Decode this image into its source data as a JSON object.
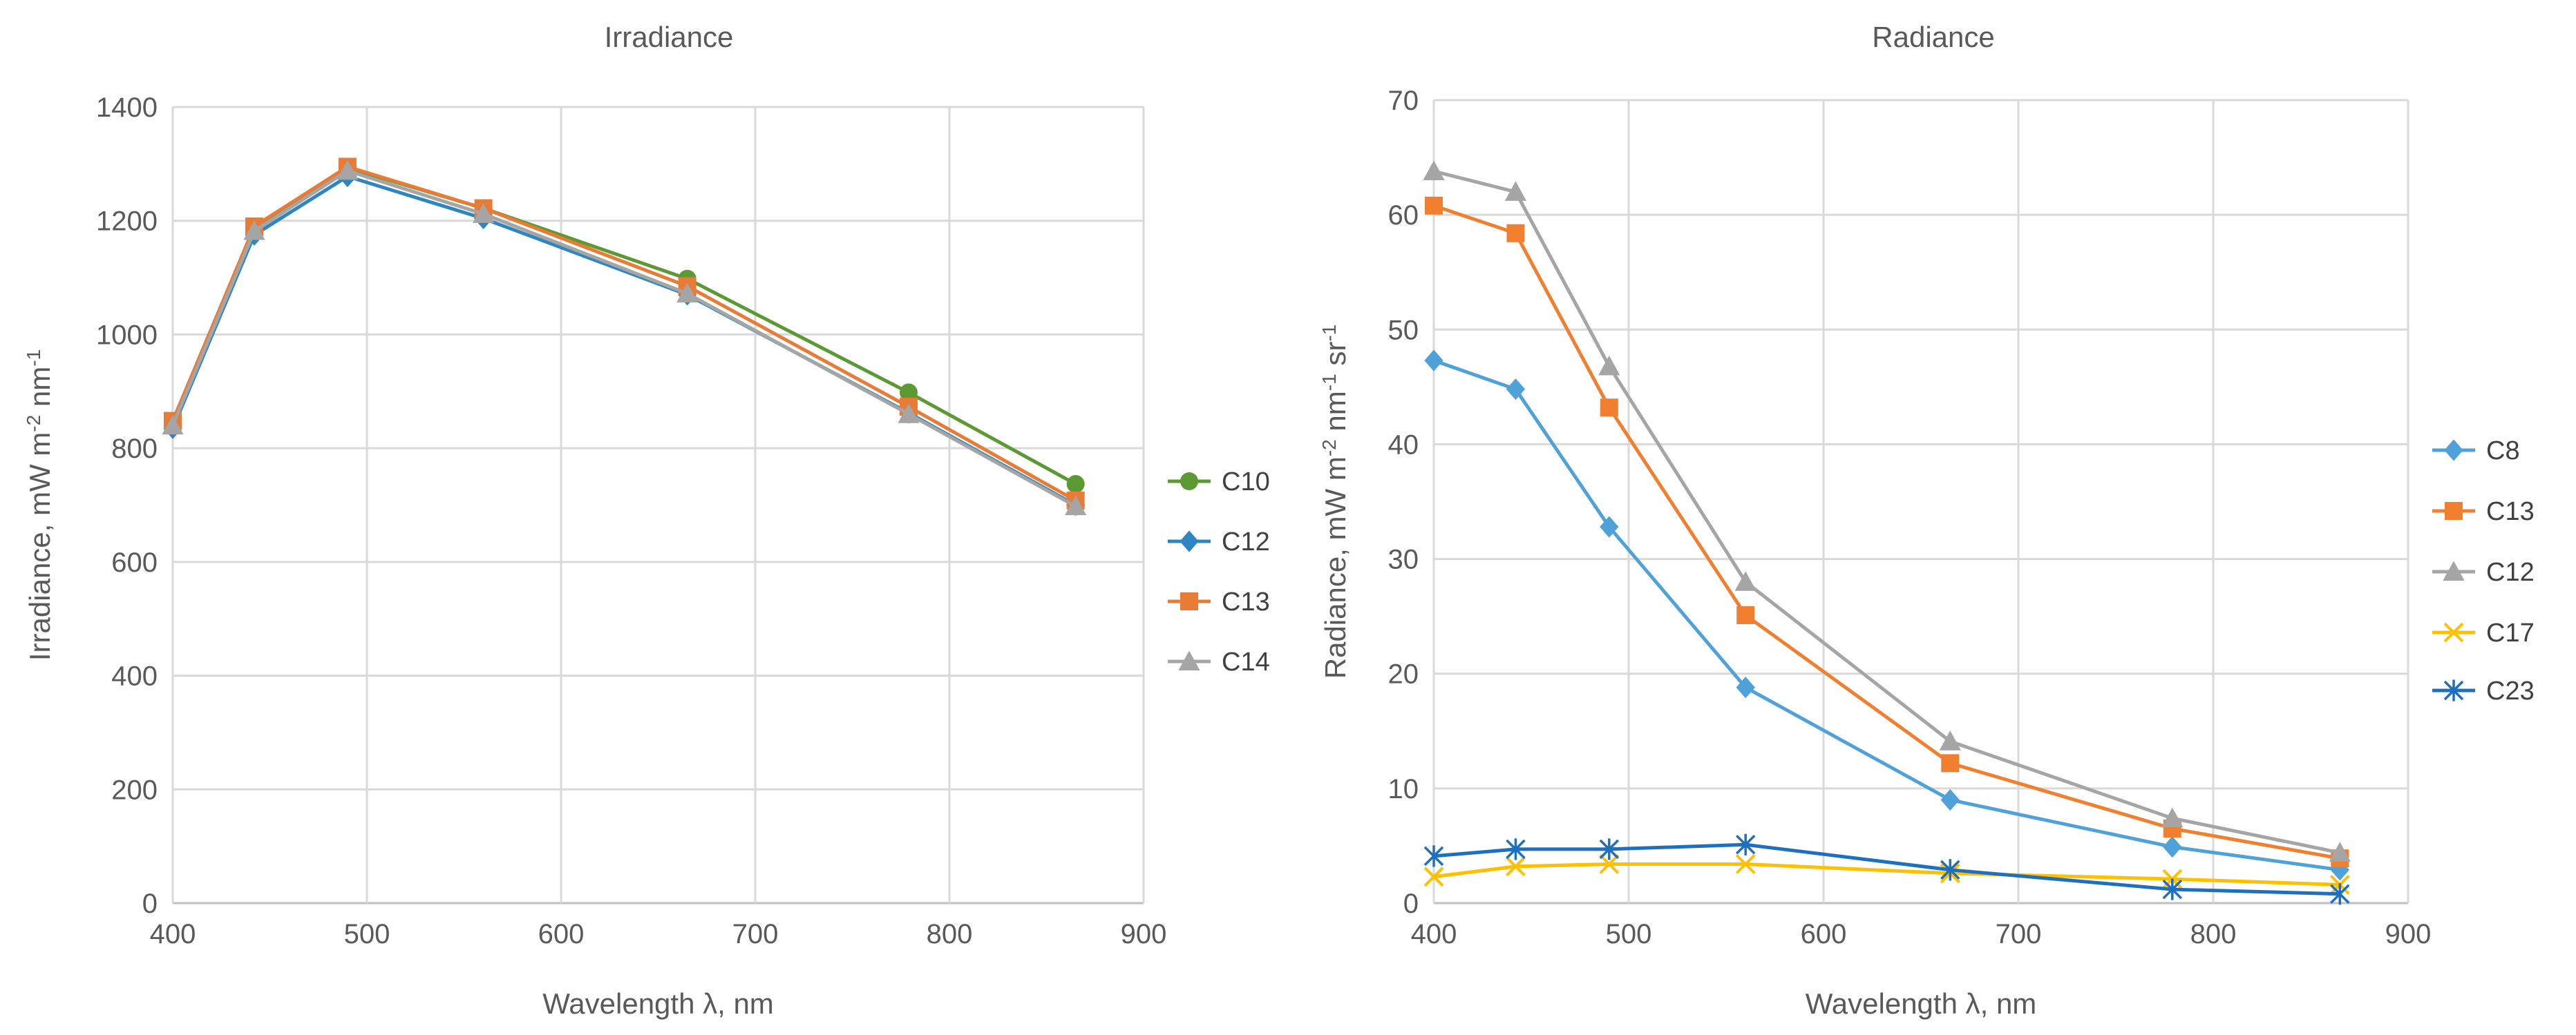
{
  "chart_data": [
    {
      "type": "line",
      "title": "Irradiance",
      "xlabel": "Wavelength λ, nm",
      "ylabel_main": "Irradiance, mW m",
      "ylabel_sup1": "-2",
      "ylabel_mid1": " nm",
      "ylabel_sup2": "-1",
      "ylabel_mid2": "",
      "ylabel_sup3": "",
      "xlim": [
        400,
        900
      ],
      "ylim": [
        0,
        1400
      ],
      "xticks": [
        400,
        500,
        600,
        700,
        800,
        900
      ],
      "yticks": [
        0,
        200,
        400,
        600,
        800,
        1000,
        1200,
        1400
      ],
      "grid": true,
      "legend": "right",
      "x": [
        400,
        442,
        490,
        560,
        665,
        779,
        865
      ],
      "series": [
        {
          "name": "C10",
          "color": "#5b9a33",
          "marker": "circle",
          "values": [
            838,
            1185,
            1293,
            1222,
            1098,
            898,
            737
          ]
        },
        {
          "name": "C12",
          "color": "#2e86c1",
          "marker": "diamond",
          "values": [
            835,
            1175,
            1278,
            1204,
            1070,
            862,
            700
          ]
        },
        {
          "name": "C13",
          "color": "#e87b35",
          "marker": "square",
          "values": [
            848,
            1190,
            1295,
            1222,
            1085,
            873,
            708
          ]
        },
        {
          "name": "C14",
          "color": "#a5a5a5",
          "marker": "triangle",
          "values": [
            840,
            1182,
            1288,
            1212,
            1072,
            860,
            698
          ]
        }
      ]
    },
    {
      "type": "line",
      "title": "Radiance",
      "xlabel": "Wavelength λ, nm",
      "ylabel_main": "Radiance, mW m",
      "ylabel_sup1": "-2",
      "ylabel_mid1": " nm",
      "ylabel_sup2": "-1",
      "ylabel_mid2": " sr",
      "ylabel_sup3": "-1",
      "xlim": [
        400,
        900
      ],
      "ylim": [
        0,
        70
      ],
      "xticks": [
        400,
        500,
        600,
        700,
        800,
        900
      ],
      "yticks": [
        0,
        10,
        20,
        30,
        40,
        50,
        60,
        70
      ],
      "grid": true,
      "legend": "right",
      "x": [
        400,
        442,
        490,
        560,
        665,
        779,
        865
      ],
      "series": [
        {
          "name": "C8",
          "color": "#4ea1d9",
          "marker": "diamond",
          "values": [
            47.3,
            44.8,
            32.8,
            18.8,
            9.0,
            4.9,
            2.9
          ]
        },
        {
          "name": "C13",
          "color": "#f08030",
          "marker": "square",
          "values": [
            60.8,
            58.4,
            43.2,
            25.1,
            12.2,
            6.5,
            3.9
          ]
        },
        {
          "name": "C12",
          "color": "#a5a5a5",
          "marker": "triangle",
          "values": [
            63.8,
            62.0,
            46.8,
            28.0,
            14.1,
            7.4,
            4.4
          ]
        },
        {
          "name": "C17",
          "color": "#ffc000",
          "marker": "x",
          "values": [
            2.3,
            3.2,
            3.4,
            3.4,
            2.6,
            2.1,
            1.6
          ]
        },
        {
          "name": "C23",
          "color": "#1f6fbf",
          "marker": "star",
          "values": [
            4.1,
            4.7,
            4.7,
            5.1,
            2.9,
            1.2,
            0.8
          ]
        }
      ]
    }
  ]
}
